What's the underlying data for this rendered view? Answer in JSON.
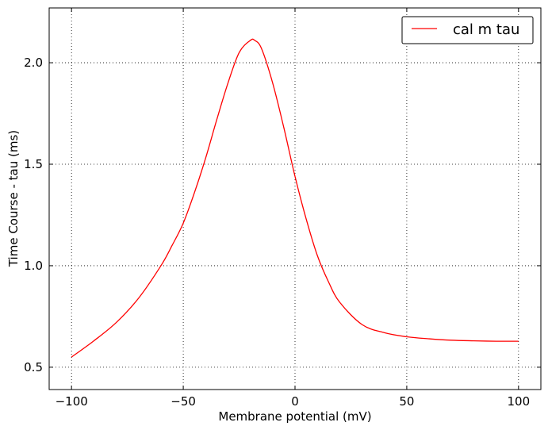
{
  "chart_data": {
    "type": "line",
    "title": "",
    "xlabel": "Membrane potential (mV)",
    "ylabel": "Time Course - tau (ms)",
    "xlim": [
      -110,
      110
    ],
    "ylim": [
      0.39,
      2.27
    ],
    "xticks": [
      -100,
      -50,
      0,
      50,
      100
    ],
    "xtick_labels": [
      "−100",
      "−50",
      "0",
      "50",
      "100"
    ],
    "yticks": [
      0.5,
      1.0,
      1.5,
      2.0
    ],
    "ytick_labels": [
      "0.5",
      "1.0",
      "1.5",
      "2.0"
    ],
    "grid": true,
    "legend_position": "top-right",
    "series": [
      {
        "name": "cal m tau",
        "color": "#ff0000",
        "x": [
          -100,
          -90,
          -80,
          -70,
          -60,
          -55,
          -50,
          -45,
          -40,
          -35,
          -30,
          -25,
          -20,
          -18,
          -15,
          -10,
          -5,
          0,
          5,
          10,
          15,
          20,
          30,
          40,
          50,
          60,
          70,
          80,
          90,
          100
        ],
        "y": [
          0.55,
          0.63,
          0.72,
          0.84,
          1.0,
          1.1,
          1.21,
          1.36,
          1.53,
          1.72,
          1.9,
          2.05,
          2.11,
          2.11,
          2.07,
          1.9,
          1.68,
          1.44,
          1.23,
          1.05,
          0.92,
          0.82,
          0.71,
          0.67,
          0.65,
          0.64,
          0.633,
          0.63,
          0.628,
          0.628
        ]
      }
    ]
  }
}
